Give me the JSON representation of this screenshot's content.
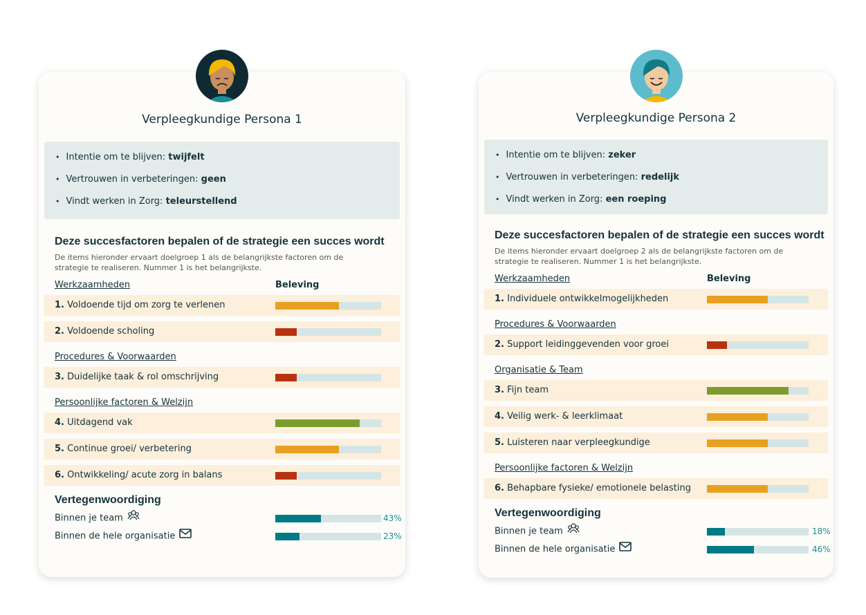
{
  "colors": {
    "orange": "#e8a020",
    "red": "#b83212",
    "green": "#7e9c2e",
    "teal": "#007a87",
    "track": "#d5e5e5"
  },
  "personas": [
    {
      "title": "Verpleegkundige Persona 1",
      "info": [
        {
          "label": "Intentie om te blijven: ",
          "value": "twijfelt"
        },
        {
          "label": "Vertrouwen in verbeteringen: ",
          "value": "geen"
        },
        {
          "label": "Vindt werken in Zorg: ",
          "value": "teleurstellend"
        }
      ],
      "heading": "Deze succesfactoren bepalen of de strategie een succes wordt",
      "description": "De items hieronder ervaart doelgroep 1 als de belangrijkste factoren om de strategie te realiseren. Nummer 1 is het belangrijkste.",
      "first_category": "Werkzaamheden",
      "beleving_label": "Beleving",
      "rows": [
        {
          "num": "1.",
          "label": "Voldoende tijd om zorg te verlenen",
          "value": 0.6,
          "color": "orange"
        },
        {
          "num": "2.",
          "label": "Voldoende scholing",
          "value": 0.2,
          "color": "red"
        },
        {
          "category": "Procedures & Voorwaarden"
        },
        {
          "num": "3.",
          "label": "Duidelijke taak & rol omschrijving",
          "value": 0.2,
          "color": "red"
        },
        {
          "category": "Persoonlijke factoren & Welzijn"
        },
        {
          "num": "4.",
          "label": "Uitdagend vak",
          "value": 0.8,
          "color": "green"
        },
        {
          "num": "5.",
          "label": "Continue groei/ verbetering",
          "value": 0.6,
          "color": "orange"
        },
        {
          "num": "6.",
          "label": "Ontwikkeling/ acute zorg in balans",
          "value": 0.2,
          "color": "red"
        }
      ],
      "rep_heading": "Vertegenwoordiging",
      "reps": [
        {
          "label": "Binnen je team",
          "icon": "team-icon",
          "percent": 43,
          "text": "43%"
        },
        {
          "label": "Binnen de hele organisatie",
          "icon": "mail-icon",
          "percent": 23,
          "text": "23%"
        }
      ]
    },
    {
      "title": "Verpleegkundige Persona 2",
      "info": [
        {
          "label": "Intentie om te blijven: ",
          "value": "zeker"
        },
        {
          "label": "Vertrouwen in verbeteringen: ",
          "value": "redelijk"
        },
        {
          "label": "Vindt werken in Zorg: ",
          "value": "een roeping"
        }
      ],
      "heading": "Deze succesfactoren bepalen of de strategie een succes wordt",
      "description": "De items hieronder ervaart doelgroep 2 als de belangrijkste factoren om de strategie te realiseren. Nummer 1 is het belangrijkste.",
      "first_category": "Werkzaamheden",
      "beleving_label": "Beleving",
      "rows": [
        {
          "num": "1.",
          "label": "Individuele ontwikkelmogelijkheden",
          "value": 0.6,
          "color": "orange"
        },
        {
          "category": "Procedures & Voorwaarden"
        },
        {
          "num": "2.",
          "label": "Support leidinggevenden voor groei",
          "value": 0.2,
          "color": "red"
        },
        {
          "category": "Organisatie & Team"
        },
        {
          "num": "3.",
          "label": "Fijn team",
          "value": 0.8,
          "color": "green"
        },
        {
          "num": "4.",
          "label": "Veilig werk- & leerklimaat",
          "value": 0.6,
          "color": "orange"
        },
        {
          "num": "5.",
          "label": "Luisteren naar verpleegkundige",
          "value": 0.6,
          "color": "orange"
        },
        {
          "category": "Persoonlijke factoren & Welzijn"
        },
        {
          "num": "6.",
          "label": "Behapbare fysieke/ emotionele belasting",
          "value": 0.6,
          "color": "orange"
        }
      ],
      "rep_heading": "Vertegenwoordiging",
      "reps": [
        {
          "label": "Binnen je team",
          "icon": "team-icon",
          "percent": 18,
          "text": "18%"
        },
        {
          "label": "Binnen de hele organisatie",
          "icon": "mail-icon",
          "percent": 46,
          "text": "46%"
        }
      ]
    }
  ]
}
